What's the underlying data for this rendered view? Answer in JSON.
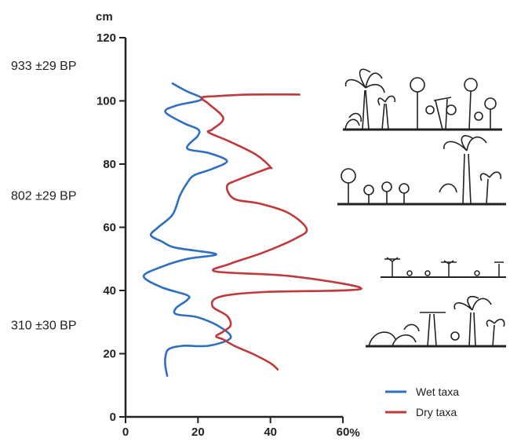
{
  "chart_data": {
    "type": "line",
    "xlabel": "%",
    "ylabel": "cm",
    "xlim": [
      0,
      60
    ],
    "ylim": [
      0,
      120
    ],
    "x_ticks": [
      0,
      20,
      40,
      60
    ],
    "y_ticks": [
      0,
      20,
      40,
      60,
      80,
      100,
      120
    ],
    "grid": false,
    "legend_position": "bottom-right",
    "dates": [
      {
        "label": "933 ±29 BP",
        "depth": 111
      },
      {
        "label": "802 ±29 BP",
        "depth": 70
      },
      {
        "label": "310 ±30 BP",
        "depth": 29
      }
    ],
    "series": [
      {
        "name": "Wet taxa",
        "color": "#2f6fc0",
        "points": [
          [
            11.5,
            13
          ],
          [
            11,
            16
          ],
          [
            11,
            19
          ],
          [
            12,
            21.5
          ],
          [
            16,
            22.5
          ],
          [
            23,
            22.5
          ],
          [
            29,
            25
          ],
          [
            26,
            28.5
          ],
          [
            20,
            31.5
          ],
          [
            14,
            32.5
          ],
          [
            14,
            34.5
          ],
          [
            17,
            37
          ],
          [
            17,
            38.5
          ],
          [
            10,
            41
          ],
          [
            5,
            44.5
          ],
          [
            10,
            47.5
          ],
          [
            17,
            50
          ],
          [
            25,
            51.5
          ],
          [
            14,
            53.5
          ],
          [
            10,
            55.5
          ],
          [
            7,
            57.5
          ],
          [
            9,
            60
          ],
          [
            13,
            64
          ],
          [
            15,
            70
          ],
          [
            17,
            74
          ],
          [
            19,
            76.5
          ],
          [
            24,
            78.5
          ],
          [
            28,
            81
          ],
          [
            23,
            83.5
          ],
          [
            17,
            85
          ],
          [
            20,
            89
          ],
          [
            20,
            91
          ],
          [
            16,
            93
          ],
          [
            11,
            96.5
          ],
          [
            14,
            98.5
          ],
          [
            20,
            100
          ],
          [
            21,
            101
          ],
          [
            17,
            103
          ],
          [
            13,
            105.5
          ]
        ]
      },
      {
        "name": "Dry taxa",
        "color": "#c0393b",
        "points": [
          [
            48,
            102
          ],
          [
            34,
            102
          ],
          [
            25,
            101.5
          ],
          [
            21,
            101
          ],
          [
            23,
            99
          ],
          [
            27,
            94.5
          ],
          [
            24,
            91
          ],
          [
            23,
            90
          ],
          [
            29,
            87
          ],
          [
            36,
            83
          ],
          [
            40,
            79
          ],
          [
            39,
            78.5
          ],
          [
            31,
            75
          ],
          [
            28,
            73
          ],
          [
            30,
            69
          ],
          [
            37,
            67.5
          ],
          [
            45,
            64.5
          ],
          [
            50,
            59.5
          ],
          [
            47,
            56.5
          ],
          [
            38,
            52
          ],
          [
            29,
            48.5
          ],
          [
            25,
            46
          ],
          [
            46,
            44.5
          ],
          [
            65,
            40.5
          ],
          [
            38,
            39.5
          ],
          [
            26,
            38
          ],
          [
            24,
            35
          ],
          [
            28,
            32
          ],
          [
            29,
            29
          ],
          [
            27,
            27
          ],
          [
            25,
            25.5
          ],
          [
            27,
            24.5
          ],
          [
            30,
            22.5
          ],
          [
            35,
            20
          ],
          [
            40,
            17
          ],
          [
            42,
            15
          ]
        ]
      }
    ]
  }
}
